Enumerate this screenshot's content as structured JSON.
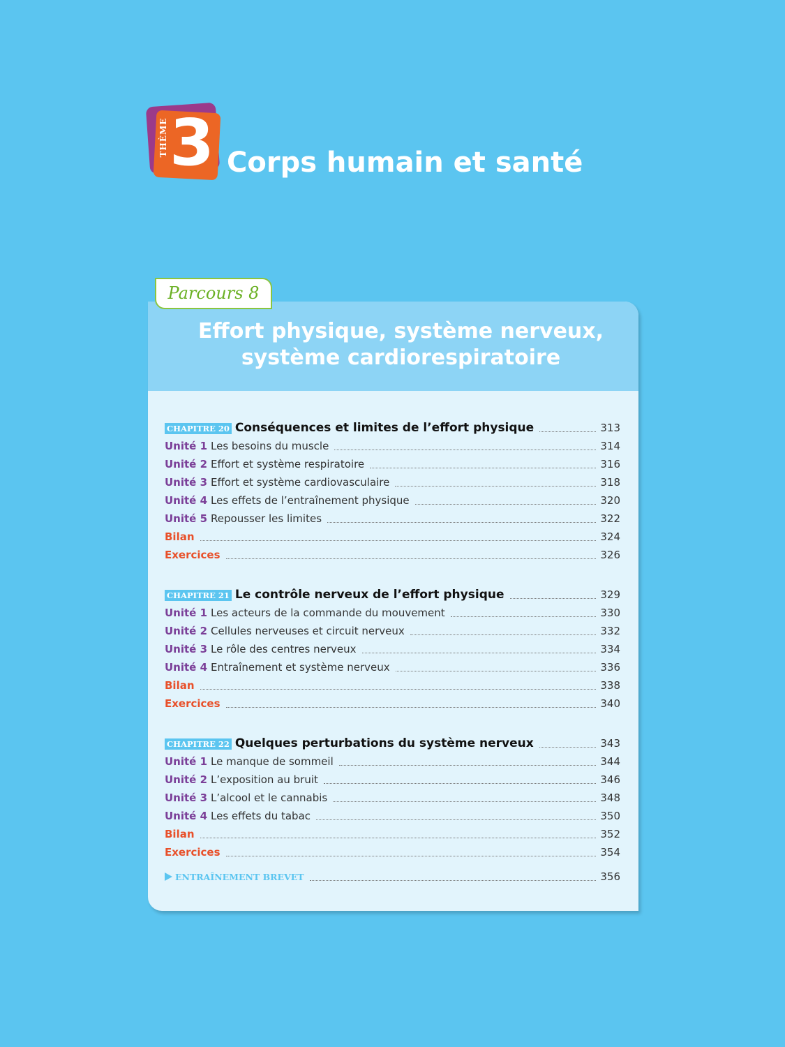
{
  "theme": {
    "label": "THÈME",
    "number": "3",
    "title": "Corps humain et santé"
  },
  "parcours": {
    "label": "Parcours 8",
    "title_lines": [
      "Effort physique, système nerveux,",
      "système cardiorespiratoire"
    ]
  },
  "chapters": [
    {
      "label": "CHAPITRE 20",
      "title": "Conséquences et limites de l’effort physique",
      "page": 313,
      "entries": [
        {
          "prefix": "Unité 1",
          "text": "Les besoins du muscle",
          "page": 314
        },
        {
          "prefix": "Unité 2",
          "text": "Effort et système respiratoire",
          "page": 316
        },
        {
          "prefix": "Unité 3",
          "text": "Effort et système cardiovasculaire",
          "page": 318
        },
        {
          "prefix": "Unité 4",
          "text": "Les effets de l’entraînement physique",
          "page": 320
        },
        {
          "prefix": "Unité 5",
          "text": "Repousser les limites",
          "page": 322
        },
        {
          "prefix": "Bilan",
          "page": 324
        },
        {
          "prefix": "Exercices",
          "page": 326
        }
      ]
    },
    {
      "label": "CHAPITRE 21",
      "title": "Le contrôle nerveux de l’effort physique",
      "page": 329,
      "entries": [
        {
          "prefix": "Unité 1",
          "text": "Les acteurs de la commande du mouvement",
          "page": 330
        },
        {
          "prefix": "Unité 2",
          "text": "Cellules nerveuses et circuit nerveux",
          "page": 332
        },
        {
          "prefix": "Unité 3",
          "text": "Le rôle des centres nerveux",
          "page": 334
        },
        {
          "prefix": "Unité 4",
          "text": "Entraînement et système nerveux",
          "page": 336
        },
        {
          "prefix": "Bilan",
          "page": 338
        },
        {
          "prefix": "Exercices",
          "page": 340
        }
      ]
    },
    {
      "label": "CHAPITRE 22",
      "title": "Quelques perturbations du système nerveux",
      "page": 343,
      "entries": [
        {
          "prefix": "Unité 1",
          "text": "Le manque de sommeil",
          "page": 344
        },
        {
          "prefix": "Unité 2",
          "text": "L’exposition au bruit",
          "page": 346
        },
        {
          "prefix": "Unité 3",
          "text": "L’alcool et le cannabis",
          "page": 348
        },
        {
          "prefix": "Unité 4",
          "text": "Les effets du tabac",
          "page": 350
        },
        {
          "prefix": "Bilan",
          "page": 352
        },
        {
          "prefix": "Exercices",
          "page": 354
        }
      ]
    }
  ],
  "closing": {
    "label": "ENTRAÎNEMENT BREVET",
    "page": 356
  }
}
